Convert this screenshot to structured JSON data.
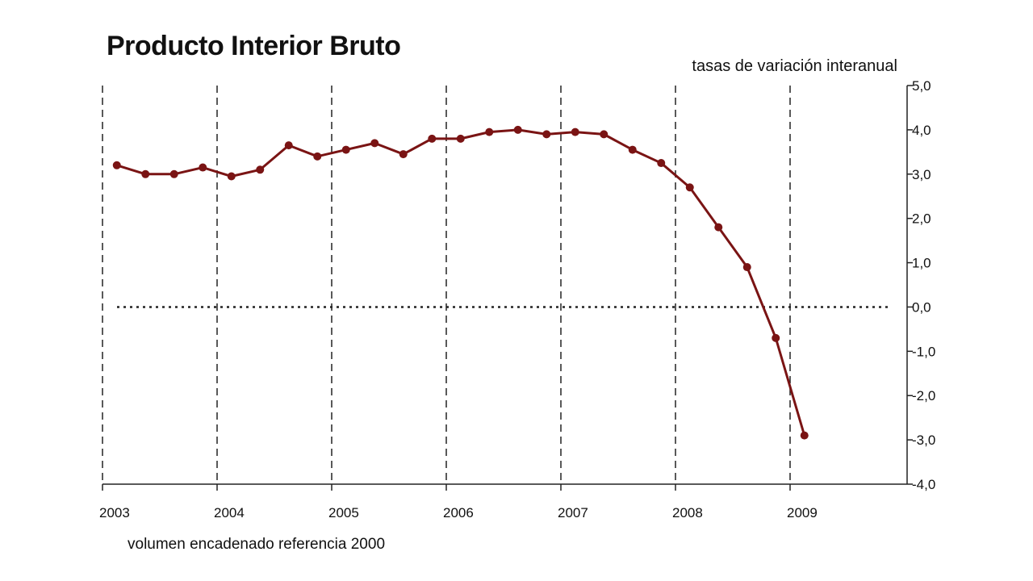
{
  "chart_data": {
    "type": "line",
    "title": "Producto Interior Bruto",
    "subtitle": "tasas de variación interanual",
    "footnote": "volumen encadenado referencia 2000",
    "x_tick_labels": [
      "2003",
      "2004",
      "2005",
      "2006",
      "2007",
      "2008",
      "2009"
    ],
    "y_tick_labels": [
      "5,0",
      "4,0",
      "3,0",
      "2,0",
      "1,0",
      "0,0",
      "-1,0",
      "-2,0",
      "-3,0",
      "-4,0"
    ],
    "y_ticks": [
      5,
      4,
      3,
      2,
      1,
      0,
      -1,
      -2,
      -3,
      -4
    ],
    "ylim": [
      -4,
      5
    ],
    "xlim": [
      2003,
      2010
    ],
    "grid": "vertical dashed lines at each year",
    "reference_line": 0,
    "series_color": "#7a1414",
    "series": [
      {
        "x": [
          2003.125,
          2003.375,
          2003.625,
          2003.875,
          2004.125,
          2004.375,
          2004.625,
          2004.875,
          2005.125,
          2005.375,
          2005.625,
          2005.875,
          2006.125,
          2006.375,
          2006.625,
          2006.875,
          2007.125,
          2007.375,
          2007.625,
          2007.875,
          2008.125,
          2008.375,
          2008.625,
          2008.875,
          2009.125
        ],
        "values": [
          3.2,
          3.0,
          3.0,
          3.15,
          2.95,
          3.1,
          3.65,
          3.4,
          3.55,
          3.7,
          3.45,
          3.8,
          3.8,
          3.95,
          4.0,
          3.9,
          3.95,
          3.9,
          3.55,
          3.25,
          2.7,
          1.8,
          0.9,
          -0.7,
          -2.9
        ]
      }
    ]
  }
}
